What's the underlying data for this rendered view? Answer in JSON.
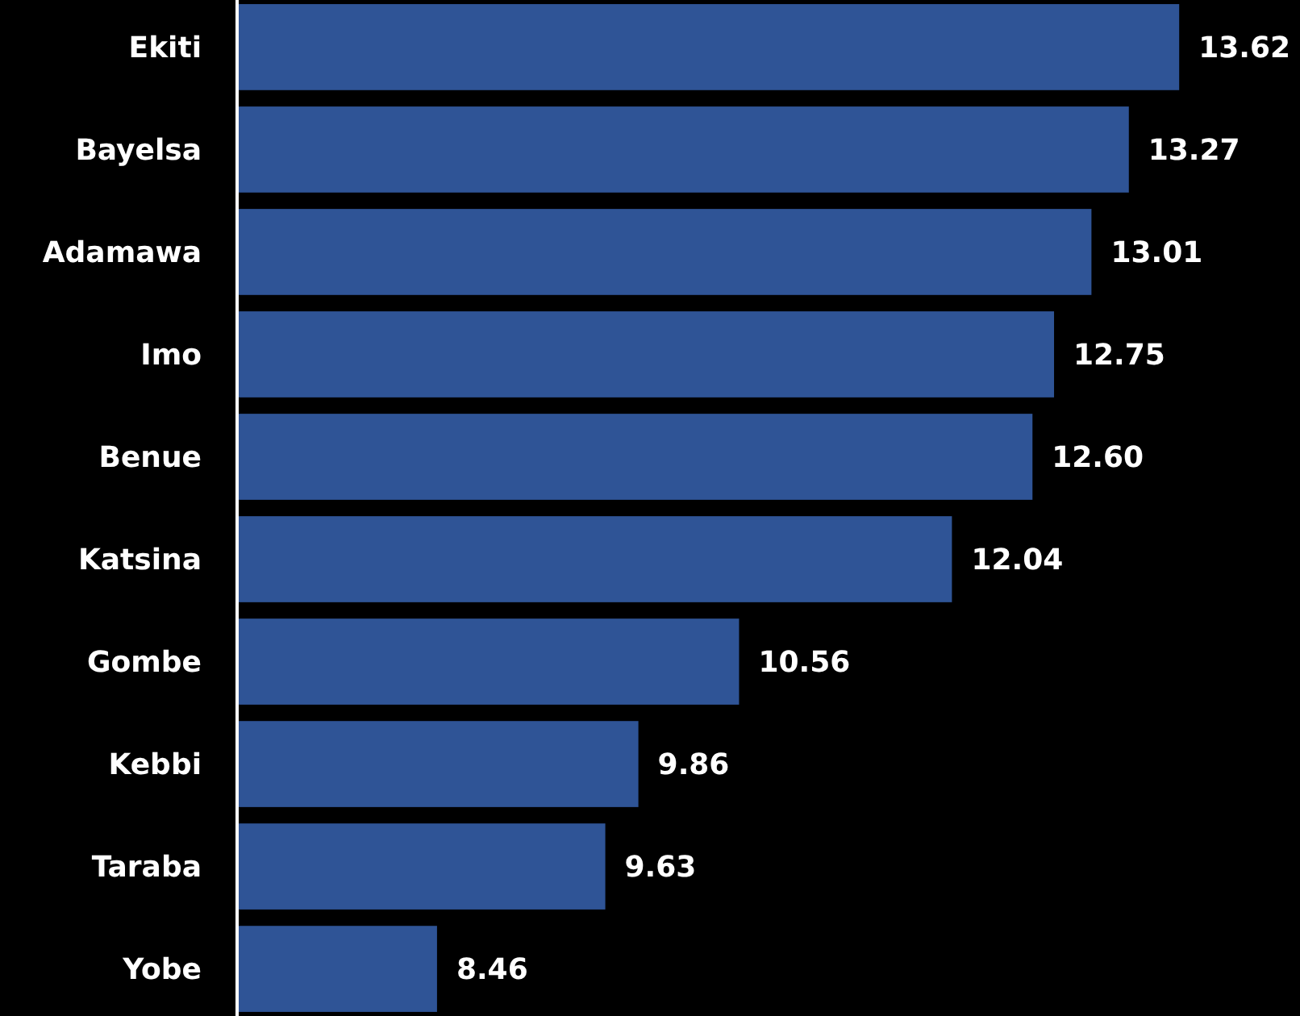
{
  "chart_data": {
    "type": "bar",
    "orientation": "horizontal",
    "categories": [
      "Ekiti",
      "Bayelsa",
      "Adamawa",
      "Imo",
      "Benue",
      "Katsina",
      "Gombe",
      "Kebbi",
      "Taraba",
      "Yobe"
    ],
    "values": [
      13.62,
      13.27,
      13.01,
      12.75,
      12.6,
      12.04,
      10.56,
      9.86,
      9.63,
      8.46
    ],
    "value_labels": [
      "13.62",
      "13.27",
      "13.01",
      "12.75",
      "12.60",
      "12.04",
      "10.56",
      "9.86",
      "9.63",
      "8.46"
    ],
    "color": "#2f5496",
    "xlim": [
      7.07,
      14.46
    ],
    "tick_labels": "y"
  }
}
